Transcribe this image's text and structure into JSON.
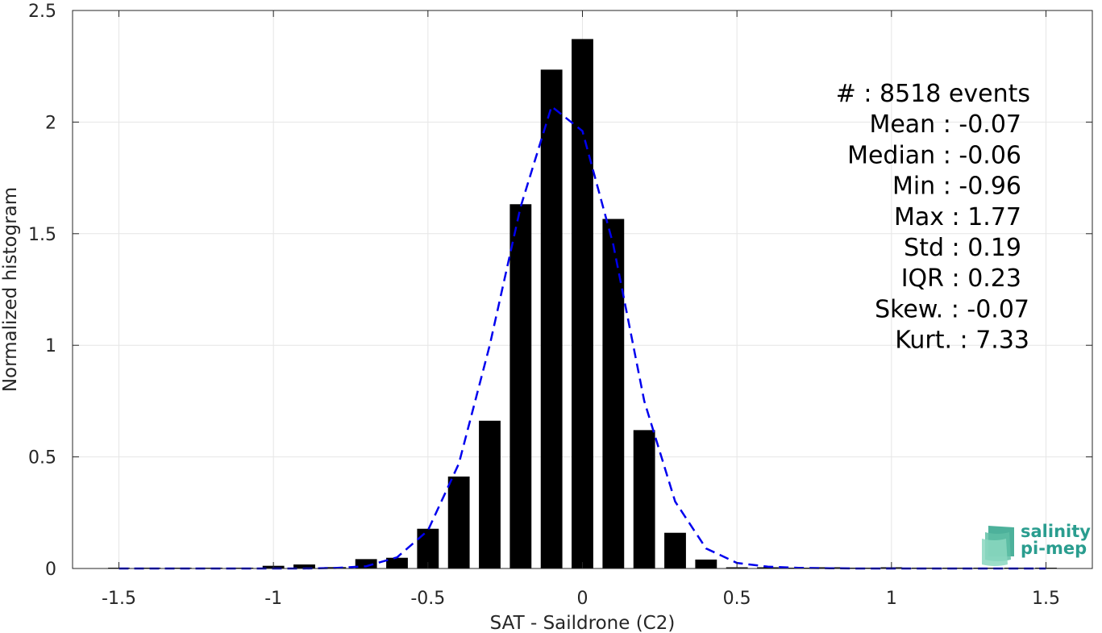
{
  "chart_data": {
    "type": "bar",
    "xlabel": "SAT - Saildrone (C2)",
    "ylabel": "Normalized histogram",
    "xlim": [
      -1.65,
      1.65
    ],
    "ylim": [
      0,
      2.5
    ],
    "xticks": [
      -1.5,
      -1,
      -0.5,
      0,
      0.5,
      1,
      1.5
    ],
    "xtick_labels": [
      "-1.5",
      "-1",
      "-0.5",
      "0",
      "0.5",
      "1",
      "1.5"
    ],
    "yticks": [
      0,
      0.5,
      1,
      1.5,
      2,
      2.5
    ],
    "ytick_labels": [
      "0",
      "0.5",
      "1",
      "1.5",
      "2",
      "2.5"
    ],
    "grid": true,
    "bar_width": 0.07,
    "bars": [
      {
        "x": -1.5,
        "y": 0.0
      },
      {
        "x": -1.4,
        "y": 0.0
      },
      {
        "x": -1.3,
        "y": 0.0
      },
      {
        "x": -1.2,
        "y": 0.0
      },
      {
        "x": -1.1,
        "y": 0.0
      },
      {
        "x": -1.0,
        "y": 0.012
      },
      {
        "x": -0.9,
        "y": 0.018
      },
      {
        "x": -0.8,
        "y": 0.006
      },
      {
        "x": -0.7,
        "y": 0.042
      },
      {
        "x": -0.6,
        "y": 0.048
      },
      {
        "x": -0.5,
        "y": 0.178
      },
      {
        "x": -0.4,
        "y": 0.412
      },
      {
        "x": -0.3,
        "y": 0.662
      },
      {
        "x": -0.2,
        "y": 1.632
      },
      {
        "x": -0.1,
        "y": 2.235
      },
      {
        "x": 0.0,
        "y": 2.372
      },
      {
        "x": 0.1,
        "y": 1.566
      },
      {
        "x": 0.2,
        "y": 0.62
      },
      {
        "x": 0.3,
        "y": 0.16
      },
      {
        "x": 0.4,
        "y": 0.04
      },
      {
        "x": 0.5,
        "y": 0.004
      },
      {
        "x": 0.6,
        "y": 0.002
      },
      {
        "x": 0.7,
        "y": 0.0
      },
      {
        "x": 0.8,
        "y": 0.005
      },
      {
        "x": 0.9,
        "y": 0.0
      },
      {
        "x": 1.0,
        "y": 0.005
      },
      {
        "x": 1.1,
        "y": 0.0
      },
      {
        "x": 1.2,
        "y": 0.0
      },
      {
        "x": 1.3,
        "y": 0.0
      },
      {
        "x": 1.4,
        "y": 0.0
      },
      {
        "x": 1.5,
        "y": 0.0
      }
    ],
    "fit_curve": {
      "style": "dashed",
      "color": "#0000ee",
      "x": [
        -1.5,
        -1.4,
        -1.3,
        -1.2,
        -1.1,
        -1.0,
        -0.9,
        -0.8,
        -0.7,
        -0.6,
        -0.5,
        -0.4,
        -0.3,
        -0.2,
        -0.1,
        0.0,
        0.1,
        0.2,
        0.3,
        0.4,
        0.5,
        0.6,
        0.7,
        0.8,
        0.9,
        1.0,
        1.1,
        1.2,
        1.3,
        1.4,
        1.5
      ],
      "y": [
        0.0,
        0.0,
        0.0,
        0.0,
        0.0,
        0.0,
        0.0,
        0.002,
        0.01,
        0.05,
        0.17,
        0.47,
        1.0,
        1.62,
        2.07,
        1.96,
        1.45,
        0.75,
        0.3,
        0.09,
        0.025,
        0.008,
        0.003,
        0.001,
        0.0,
        0.0,
        0.0,
        0.0,
        0.0,
        0.0,
        0.0
      ]
    },
    "stats": [
      "#  : 8518 events",
      "Mean : -0.07",
      "Median : -0.06",
      "Min : -0.96",
      "Max : 1.77",
      "Std : 0.19",
      "IQR : 0.23",
      "Skew. : -0.07",
      "Kurt. : 7.33"
    ]
  },
  "logo": {
    "line1": "salinity",
    "line2": "pi-mep"
  },
  "colors": {
    "bar": "#000000",
    "grid": "#e6e6e6",
    "axis": "#262626",
    "logo": "#2a9d8f"
  }
}
